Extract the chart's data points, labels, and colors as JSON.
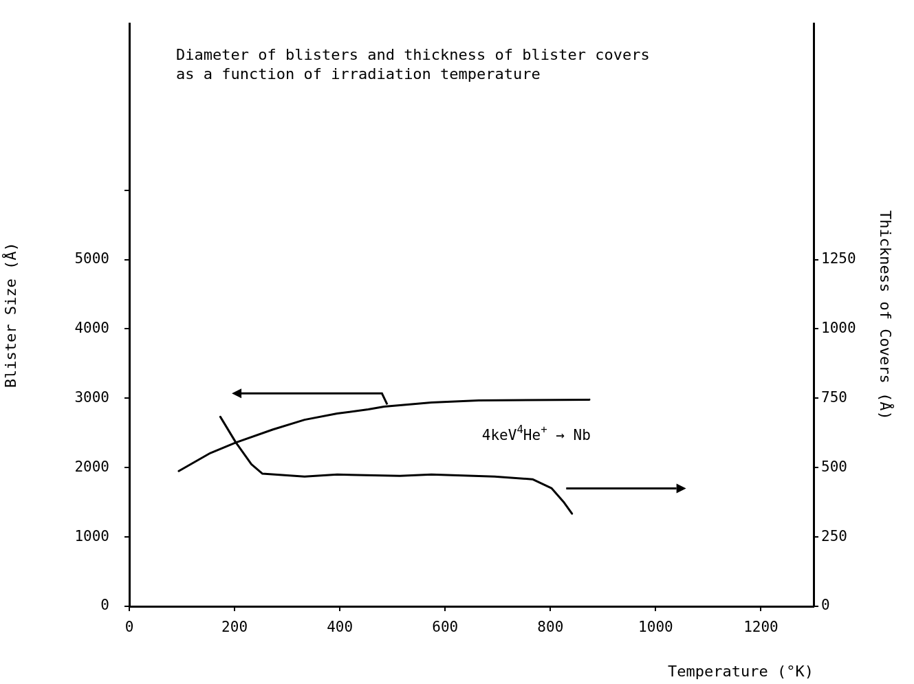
{
  "chart_data": {
    "type": "line",
    "title": "Diameter of blisters and thickness of blister covers\nas a function of irradiation temperature",
    "xlabel": "Temperature (°K)",
    "ylabel": "Blister Size (Å)",
    "y2label": "Thickness of Covers (Å)",
    "annotations": [
      "4keV$^{4}$He$^{+}$ → Nb"
    ],
    "series": [
      {
        "color": "#000000",
        "x": [
          94,
          154,
          202,
          273,
          333,
          395,
          454,
          484,
          574,
          664,
          874
        ],
        "values": [
          1950,
          2210,
          2360,
          2550,
          2690,
          2780,
          2840,
          2880,
          2940,
          2970,
          2980
        ]
      },
      {
        "color": "#000000",
        "axis": "y2",
        "x": [
          173,
          202,
          232,
          253,
          333,
          395,
          514,
          574,
          694,
          766,
          802,
          826,
          841
        ],
        "values": [
          683,
          592,
          512,
          478,
          468,
          475,
          470,
          475,
          468,
          458,
          426,
          374,
          334
        ]
      }
    ],
    "xlim": [
      0,
      1300
    ],
    "xticks": [
      0,
      200,
      400,
      600,
      800,
      1000,
      1200
    ],
    "ylim": [
      0,
      8400
    ],
    "yticks": [
      0,
      1000,
      2000,
      3000,
      4000,
      5000,
      {
        "value": 6000,
        "label": null
      }
    ],
    "y2lim": [
      0,
      2100
    ],
    "y2ticks": [
      0,
      250,
      500,
      750,
      1000,
      1250
    ],
    "grid": false,
    "legend": false,
    "marker": "none",
    "line_style": "solid"
  }
}
